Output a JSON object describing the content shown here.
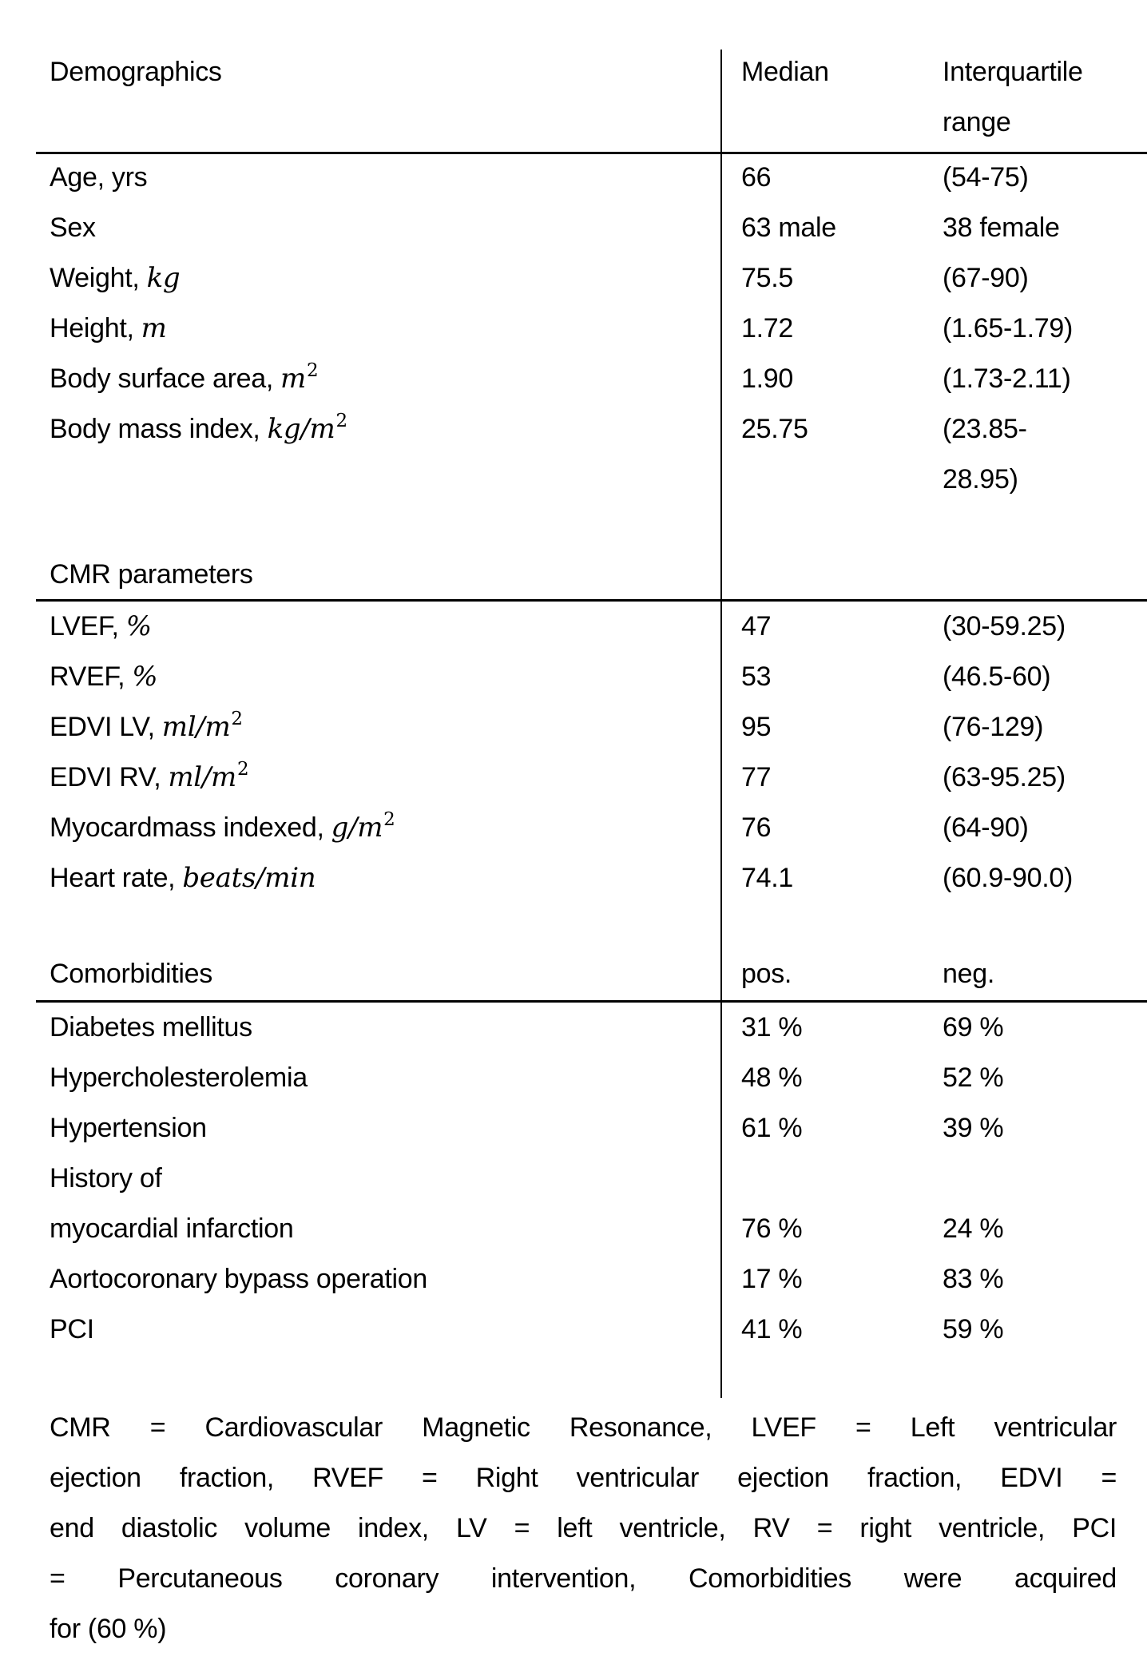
{
  "colors": {
    "background": "#ffffff",
    "text": "#000000",
    "rule": "#000000"
  },
  "table": {
    "sections": [
      {
        "heading": "Demographics",
        "col2_header": "Median",
        "col3_header_line1": "Interquartile",
        "col3_header_line2": "range",
        "rows": [
          {
            "label": "Age, yrs",
            "unit": "",
            "sup": "",
            "median": "66",
            "iqr": "(54-75)"
          },
          {
            "label": "Sex",
            "unit": "",
            "sup": "",
            "median": "63 male",
            "iqr": "38 female"
          },
          {
            "label": "Weight,",
            "unit": "kg",
            "sup": "",
            "median": "75.5",
            "iqr": "(67-90)"
          },
          {
            "label": "Height,",
            "unit": "m",
            "sup": "",
            "median": "1.72",
            "iqr": "(1.65-1.79)"
          },
          {
            "label": "Body surface area,",
            "unit": "m",
            "sup": "2",
            "median": "1.90",
            "iqr": "(1.73-2.11)"
          },
          {
            "label": "Body mass index,",
            "unit": "kg/m",
            "sup": "2",
            "median": "25.75",
            "iqr": "(23.85-",
            "iqr2": "28.95)"
          }
        ]
      },
      {
        "heading": "CMR parameters",
        "rows": [
          {
            "label": "LVEF,",
            "unit": "%",
            "sup": "",
            "median": "47",
            "iqr": "(30-59.25)"
          },
          {
            "label": "RVEF,",
            "unit": "%",
            "sup": "",
            "median": "53",
            "iqr": "(46.5-60)"
          },
          {
            "label": "EDVI LV,",
            "unit": "ml/m",
            "sup": "2",
            "median": "95",
            "iqr": "(76-129)"
          },
          {
            "label": "EDVI RV,",
            "unit": "ml/m",
            "sup": "2",
            "median": "77",
            "iqr": "(63-95.25)"
          },
          {
            "label": "Myocardmass indexed,",
            "unit": "g/m",
            "sup": "2",
            "median": "76",
            "iqr": "(64-90)"
          },
          {
            "label": "Heart rate,",
            "unit": "beats/min",
            "sup": "",
            "median": "74.1",
            "iqr": "(60.9-90.0)"
          }
        ]
      },
      {
        "heading": "Comorbidities",
        "col2_header": "pos.",
        "col3_header": "neg.",
        "rows": [
          {
            "label": "Diabetes mellitus",
            "unit": "",
            "sup": "",
            "median": "31 %",
            "iqr": "69 %"
          },
          {
            "label": "Hypercholesterolemia",
            "unit": "",
            "sup": "",
            "median": "48 %",
            "iqr": "52 %"
          },
          {
            "label": "Hypertension",
            "unit": "",
            "sup": "",
            "median": "61 %",
            "iqr": "39 %"
          },
          {
            "label": "History of",
            "unit": "",
            "sup": "",
            "median": "",
            "iqr": ""
          },
          {
            "label": "myocardial infarction",
            "unit": "",
            "sup": "",
            "median": "76 %",
            "iqr": "24 %"
          },
          {
            "label": "Aortocoronary bypass operation",
            "unit": "",
            "sup": "",
            "median": "17 %",
            "iqr": "83 %"
          },
          {
            "label": "PCI",
            "unit": "",
            "sup": "",
            "median": "41 %",
            "iqr": "59 %"
          }
        ]
      }
    ]
  },
  "footnote": {
    "lines": [
      "CMR = Cardiovascular Magnetic Resonance, LVEF = Left ventricular",
      "ejection fraction, RVEF = Right ventricular ejection fraction, EDVI =",
      "end diastolic volume index, LV = left ventricle, RV = right ventricle, PCI",
      "= Percutaneous coronary intervention, Comorbidities were acquired",
      "for (60 %)"
    ]
  }
}
